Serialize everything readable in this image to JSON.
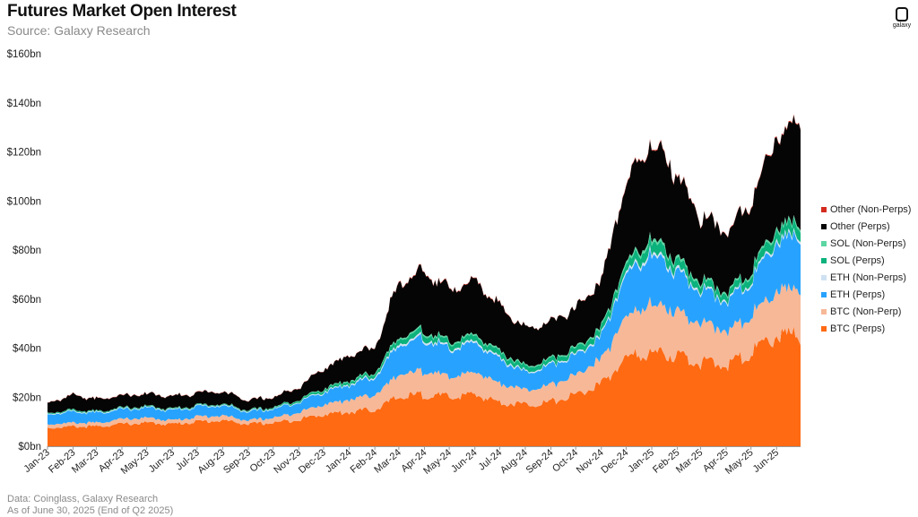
{
  "header": {
    "title": "Futures Market Open Interest",
    "subtitle": "Source: Galaxy Research",
    "logo_text": "galaxy"
  },
  "footer": {
    "line1": "Data: Coinglass, Galaxy Research",
    "line2": "As of June 30, 2025 (End of Q2 2025)"
  },
  "chart_data": {
    "type": "area",
    "stacked": true,
    "title": "Futures Market Open Interest",
    "xlabel": "",
    "ylabel": "",
    "ylim": [
      0,
      160
    ],
    "y_unit": "bn (USD)",
    "y_ticks": [
      "$0bn",
      "$20bn",
      "$40bn",
      "$60bn",
      "$80bn",
      "$100bn",
      "$120bn",
      "$140bn",
      "$160bn"
    ],
    "x_ticks": [
      "Jan-23",
      "Feb-23",
      "Mar-23",
      "Apr-23",
      "May-23",
      "Jun-23",
      "Jul-23",
      "Aug-23",
      "Sep-23",
      "Oct-23",
      "Nov-23",
      "Dec-23",
      "Jan-24",
      "Feb-24",
      "Mar-24",
      "Apr-24",
      "May-24",
      "Jun-24",
      "Jul-24",
      "Aug-24",
      "Sep-24",
      "Oct-24",
      "Nov-24",
      "Dec-24",
      "Jan-25",
      "Feb-25",
      "Mar-25",
      "Apr-25",
      "May-25",
      "Jun-25"
    ],
    "x": [
      "2023-01-01",
      "2023-02-01",
      "2023-03-01",
      "2023-04-01",
      "2023-05-01",
      "2023-06-01",
      "2023-07-01",
      "2023-08-01",
      "2023-09-01",
      "2023-10-01",
      "2023-11-01",
      "2023-12-01",
      "2024-01-01",
      "2024-02-01",
      "2024-03-01",
      "2024-04-01",
      "2024-05-01",
      "2024-06-01",
      "2024-07-01",
      "2024-08-01",
      "2024-09-01",
      "2024-10-01",
      "2024-11-01",
      "2024-12-01",
      "2025-01-01",
      "2025-02-01",
      "2025-03-01",
      "2025-04-01",
      "2025-05-01",
      "2025-06-01",
      "2025-06-30"
    ],
    "grid": false,
    "legend_position": "right",
    "series": [
      {
        "name": "BTC (Perps)",
        "color": "#ff6a13",
        "values": [
          7.5,
          8,
          8,
          9,
          9.5,
          9,
          10,
          10.5,
          9,
          9.5,
          11,
          13,
          14,
          15,
          20,
          21,
          20,
          21,
          18,
          17,
          18,
          21,
          25,
          36,
          38,
          37,
          34,
          33,
          38,
          45,
          45
        ]
      },
      {
        "name": "BTC (Non-Perp)",
        "color": "#f7b897",
        "values": [
          1.5,
          1.5,
          1.5,
          2,
          2,
          1.5,
          2,
          2,
          1.5,
          2,
          3,
          4,
          5,
          6,
          9,
          10,
          8,
          9,
          8,
          6,
          7,
          8,
          10,
          17,
          20,
          18,
          16,
          14,
          15,
          18,
          19
        ]
      },
      {
        "name": "ETH (Perps)",
        "color": "#27a3ff",
        "values": [
          4,
          4.5,
          4,
          4,
          4,
          4,
          4,
          4,
          3.5,
          3.5,
          4,
          5,
          6,
          7,
          12,
          13,
          11,
          12,
          10,
          7,
          8,
          8,
          9,
          17,
          20,
          16,
          13,
          12,
          14,
          20,
          21
        ]
      },
      {
        "name": "ETH (Non-Perps)",
        "color": "#cfe2f3",
        "values": [
          0.3,
          0.3,
          0.3,
          0.3,
          0.3,
          0.3,
          0.3,
          0.3,
          0.3,
          0.3,
          0.3,
          0.4,
          0.5,
          0.6,
          0.8,
          0.8,
          0.7,
          0.8,
          0.7,
          0.5,
          0.5,
          0.6,
          0.7,
          1,
          1.2,
          1,
          0.8,
          0.7,
          0.8,
          1,
          1
        ]
      },
      {
        "name": "SOL (Perps)",
        "color": "#0cb27c",
        "values": [
          0.3,
          0.4,
          0.3,
          0.3,
          0.3,
          0.3,
          0.3,
          0.3,
          0.3,
          0.4,
          0.6,
          0.9,
          1,
          1.2,
          2,
          2.2,
          2,
          2.1,
          2.1,
          1.8,
          1.8,
          2,
          2.4,
          3,
          4.5,
          3.5,
          2.8,
          2.6,
          3,
          4,
          4
        ]
      },
      {
        "name": "SOL (Non-Perps)",
        "color": "#5cd6a2",
        "values": [
          0.1,
          0.1,
          0.1,
          0.1,
          0.1,
          0.1,
          0.1,
          0.1,
          0.1,
          0.1,
          0.2,
          0.3,
          0.4,
          0.4,
          0.6,
          0.7,
          0.6,
          0.6,
          0.6,
          0.5,
          0.5,
          0.6,
          0.7,
          1,
          1.3,
          1,
          0.8,
          0.7,
          0.8,
          1,
          1
        ]
      },
      {
        "name": "Other (Perps)",
        "color": "#050505",
        "values": [
          4,
          6,
          5,
          5,
          5,
          5,
          5,
          5,
          4,
          4,
          5,
          8,
          10,
          10,
          22,
          24,
          21,
          22,
          18,
          15,
          15,
          16,
          19,
          33,
          38,
          34,
          26,
          24,
          28,
          37,
          40
        ]
      },
      {
        "name": "Other (Non-Perps)",
        "color": "#d42b1e",
        "values": [
          0.1,
          0.1,
          0.1,
          0.1,
          0.1,
          0.1,
          0.1,
          0.1,
          0.1,
          0.1,
          0.1,
          0.1,
          0.1,
          0.1,
          0.2,
          0.2,
          0.2,
          0.2,
          0.2,
          0.1,
          0.1,
          0.1,
          0.2,
          0.3,
          0.3,
          0.3,
          0.2,
          0.2,
          0.3,
          0.3,
          0.3
        ]
      }
    ]
  }
}
